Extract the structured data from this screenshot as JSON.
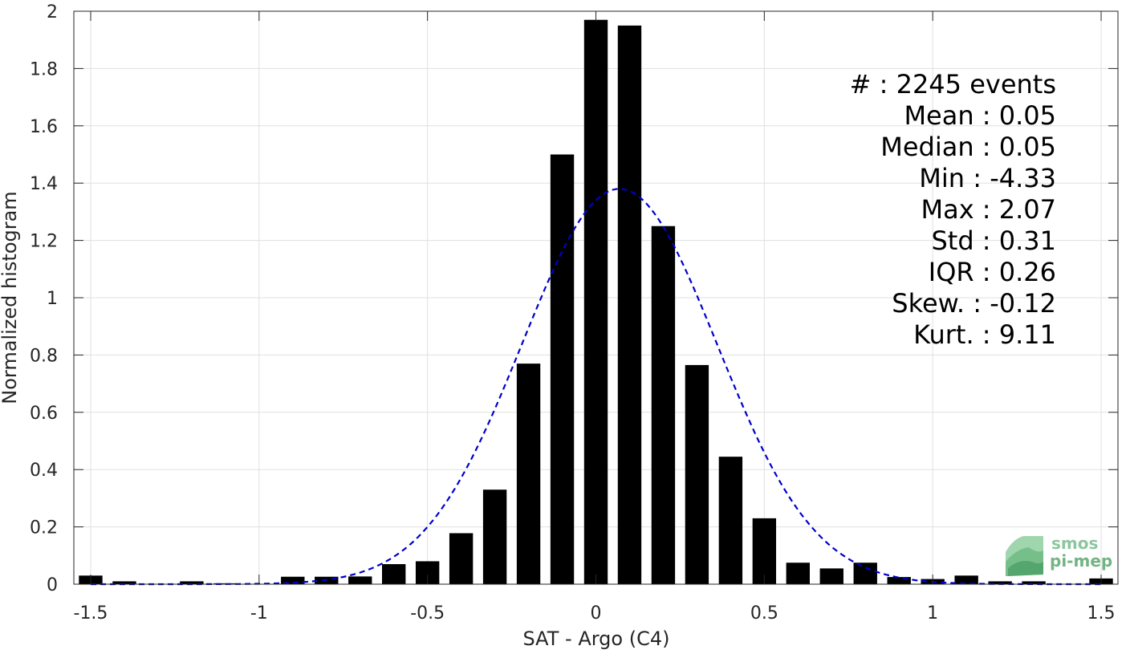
{
  "chart_data": {
    "type": "bar",
    "xlabel": "SAT - Argo (C4)",
    "ylabel": "Normalized histogram",
    "xlim": [
      -1.55,
      1.55
    ],
    "ylim": [
      0,
      2
    ],
    "grid": true,
    "x_ticks": [
      -1.5,
      -1,
      -0.5,
      0,
      0.5,
      1,
      1.5
    ],
    "x_tick_labels": [
      "-1.5",
      "-1",
      "-0.5",
      "0",
      "0.5",
      "1",
      "1.5"
    ],
    "y_ticks": [
      0,
      0.2,
      0.4,
      0.6,
      0.8,
      1,
      1.2,
      1.4,
      1.6,
      1.8,
      2
    ],
    "y_tick_labels": [
      "0",
      "0.2",
      "0.4",
      "0.6",
      "0.8",
      "1",
      "1.2",
      "1.4",
      "1.6",
      "1.8",
      "2"
    ],
    "bar_width": 0.07,
    "bar_color": "#000000",
    "bars": {
      "x": [
        -1.5,
        -1.4,
        -1.3,
        -1.2,
        -1.1,
        -1.0,
        -0.9,
        -0.8,
        -0.7,
        -0.6,
        -0.5,
        -0.4,
        -0.3,
        -0.2,
        -0.1,
        0.0,
        0.1,
        0.2,
        0.3,
        0.4,
        0.5,
        0.6,
        0.7,
        0.8,
        0.9,
        1.0,
        1.1,
        1.2,
        1.3,
        1.4,
        1.5
      ],
      "values": [
        0.03,
        0.01,
        0.0,
        0.01,
        0.003,
        0.0,
        0.026,
        0.026,
        0.027,
        0.07,
        0.08,
        0.178,
        0.33,
        0.77,
        1.5,
        1.97,
        1.95,
        1.25,
        0.765,
        0.445,
        0.23,
        0.075,
        0.055,
        0.075,
        0.025,
        0.018,
        0.03,
        0.01,
        0.01,
        0.0,
        0.02
      ]
    },
    "series": [
      {
        "type": "line",
        "style": "dashed",
        "color": "#0000cc",
        "mean": 0.07,
        "std": 0.29,
        "peak": 1.38
      }
    ]
  },
  "stats": [
    {
      "label": "#  ",
      "value": "2245 events"
    },
    {
      "label": "Mean",
      "value": "0.05"
    },
    {
      "label": "Median",
      "value": "0.05"
    },
    {
      "label": "Min",
      "value": "-4.33"
    },
    {
      "label": "Max",
      "value": "2.07"
    },
    {
      "label": "Std",
      "value": "0.31"
    },
    {
      "label": "IQR",
      "value": "0.26"
    },
    {
      "label": "Skew.",
      "value": "-0.12"
    },
    {
      "label": "Kurt.",
      "value": "9.11"
    }
  ],
  "logo": {
    "line1": "smos",
    "line2": "pi-mep",
    "color": "#5aa86e"
  }
}
